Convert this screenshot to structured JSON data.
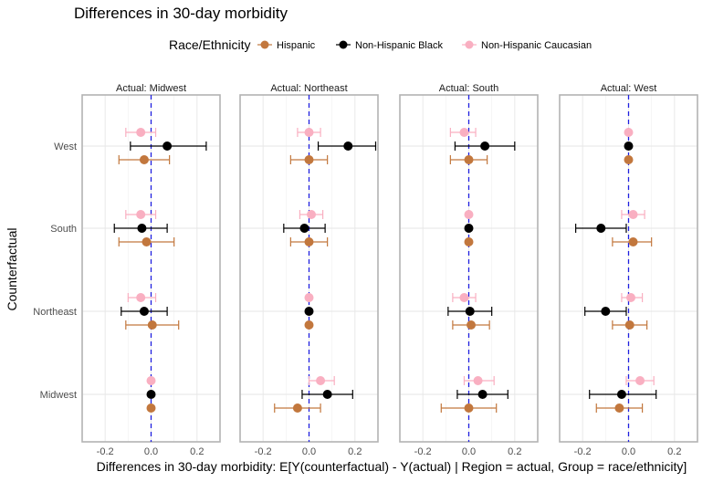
{
  "chart_data": {
    "type": "dot-errorbar-facets",
    "title": "Differences in 30-day morbidity",
    "legend": {
      "title": "Race/Ethnicity",
      "position": "top",
      "entries": [
        {
          "name": "Hispanic",
          "color": "#c2773d"
        },
        {
          "name": "Non-Hispanic Black",
          "color": "#000000"
        },
        {
          "name": "Non-Hispanic Caucasian",
          "color": "#f9afc1"
        }
      ]
    },
    "xlabel": "Differences in 30-day morbidity: E[Y(counterfactual) - Y(actual) | Region = actual, Group = race/ethnicity]",
    "ylabel": "Counterfactual",
    "xlim": [
      -0.3,
      0.3
    ],
    "xticks": [
      -0.2,
      0.0,
      0.2
    ],
    "xtick_labels": [
      "-0.2",
      "0.0",
      "0.2"
    ],
    "categories": [
      "West",
      "South",
      "Northeast",
      "Midwest"
    ],
    "reference_line": 0,
    "panels": [
      {
        "label": "Actual: Midwest",
        "highlighted_category": "Midwest",
        "series": [
          {
            "name": "Non-Hispanic Caucasian",
            "points": [
              {
                "y": "West",
                "x": -0.045,
                "lo": -0.11,
                "hi": 0.02
              },
              {
                "y": "South",
                "x": -0.045,
                "lo": -0.11,
                "hi": 0.02
              },
              {
                "y": "Northeast",
                "x": -0.045,
                "lo": -0.1,
                "hi": 0.02
              },
              {
                "y": "Midwest",
                "x": 0.0,
                "lo": 0.0,
                "hi": 0.0
              }
            ]
          },
          {
            "name": "Non-Hispanic Black",
            "points": [
              {
                "y": "West",
                "x": 0.07,
                "lo": -0.09,
                "hi": 0.24
              },
              {
                "y": "South",
                "x": -0.04,
                "lo": -0.16,
                "hi": 0.07
              },
              {
                "y": "Northeast",
                "x": -0.03,
                "lo": -0.13,
                "hi": 0.07
              },
              {
                "y": "Midwest",
                "x": 0.0,
                "lo": 0.0,
                "hi": 0.0
              }
            ]
          },
          {
            "name": "Hispanic",
            "points": [
              {
                "y": "West",
                "x": -0.03,
                "lo": -0.14,
                "hi": 0.08
              },
              {
                "y": "South",
                "x": -0.02,
                "lo": -0.14,
                "hi": 0.1
              },
              {
                "y": "Northeast",
                "x": 0.005,
                "lo": -0.11,
                "hi": 0.12
              },
              {
                "y": "Midwest",
                "x": 0.0,
                "lo": 0.0,
                "hi": 0.0
              }
            ]
          }
        ]
      },
      {
        "label": "Actual: Northeast",
        "highlighted_category": "Northeast",
        "series": [
          {
            "name": "Non-Hispanic Caucasian",
            "points": [
              {
                "y": "West",
                "x": 0.0,
                "lo": -0.05,
                "hi": 0.05
              },
              {
                "y": "South",
                "x": 0.01,
                "lo": -0.04,
                "hi": 0.06
              },
              {
                "y": "Northeast",
                "x": 0.0,
                "lo": 0.0,
                "hi": 0.0
              },
              {
                "y": "Midwest",
                "x": 0.05,
                "lo": 0.0,
                "hi": 0.11
              }
            ]
          },
          {
            "name": "Non-Hispanic Black",
            "points": [
              {
                "y": "West",
                "x": 0.17,
                "lo": 0.04,
                "hi": 0.29
              },
              {
                "y": "South",
                "x": -0.02,
                "lo": -0.11,
                "hi": 0.07
              },
              {
                "y": "Northeast",
                "x": 0.0,
                "lo": 0.0,
                "hi": 0.0
              },
              {
                "y": "Midwest",
                "x": 0.08,
                "lo": -0.03,
                "hi": 0.19
              }
            ]
          },
          {
            "name": "Hispanic",
            "points": [
              {
                "y": "West",
                "x": 0.0,
                "lo": -0.08,
                "hi": 0.08
              },
              {
                "y": "South",
                "x": 0.0,
                "lo": -0.08,
                "hi": 0.08
              },
              {
                "y": "Northeast",
                "x": 0.0,
                "lo": 0.0,
                "hi": 0.0
              },
              {
                "y": "Midwest",
                "x": -0.05,
                "lo": -0.15,
                "hi": 0.05
              }
            ]
          }
        ]
      },
      {
        "label": "Actual: South",
        "highlighted_category": "South",
        "series": [
          {
            "name": "Non-Hispanic Caucasian",
            "points": [
              {
                "y": "West",
                "x": -0.02,
                "lo": -0.08,
                "hi": 0.03
              },
              {
                "y": "South",
                "x": 0.0,
                "lo": 0.0,
                "hi": 0.0
              },
              {
                "y": "Northeast",
                "x": -0.02,
                "lo": -0.07,
                "hi": 0.03
              },
              {
                "y": "Midwest",
                "x": 0.04,
                "lo": -0.02,
                "hi": 0.11
              }
            ]
          },
          {
            "name": "Non-Hispanic Black",
            "points": [
              {
                "y": "West",
                "x": 0.07,
                "lo": -0.06,
                "hi": 0.2
              },
              {
                "y": "South",
                "x": 0.0,
                "lo": 0.0,
                "hi": 0.0
              },
              {
                "y": "Northeast",
                "x": 0.005,
                "lo": -0.09,
                "hi": 0.1
              },
              {
                "y": "Midwest",
                "x": 0.06,
                "lo": -0.05,
                "hi": 0.17
              }
            ]
          },
          {
            "name": "Hispanic",
            "points": [
              {
                "y": "West",
                "x": 0.0,
                "lo": -0.08,
                "hi": 0.08
              },
              {
                "y": "South",
                "x": 0.0,
                "lo": 0.0,
                "hi": 0.0
              },
              {
                "y": "Northeast",
                "x": 0.01,
                "lo": -0.07,
                "hi": 0.09
              },
              {
                "y": "Midwest",
                "x": 0.0,
                "lo": -0.12,
                "hi": 0.12
              }
            ]
          }
        ]
      },
      {
        "label": "Actual: West",
        "highlighted_category": "West",
        "series": [
          {
            "name": "Non-Hispanic Caucasian",
            "points": [
              {
                "y": "West",
                "x": 0.0,
                "lo": 0.0,
                "hi": 0.0
              },
              {
                "y": "South",
                "x": 0.02,
                "lo": -0.03,
                "hi": 0.07
              },
              {
                "y": "Northeast",
                "x": 0.01,
                "lo": -0.03,
                "hi": 0.06
              },
              {
                "y": "Midwest",
                "x": 0.05,
                "lo": -0.01,
                "hi": 0.11
              }
            ]
          },
          {
            "name": "Non-Hispanic Black",
            "points": [
              {
                "y": "West",
                "x": 0.0,
                "lo": 0.0,
                "hi": 0.0
              },
              {
                "y": "South",
                "x": -0.12,
                "lo": -0.23,
                "hi": -0.01
              },
              {
                "y": "Northeast",
                "x": -0.1,
                "lo": -0.19,
                "hi": -0.01
              },
              {
                "y": "Midwest",
                "x": -0.03,
                "lo": -0.17,
                "hi": 0.12
              }
            ]
          },
          {
            "name": "Hispanic",
            "points": [
              {
                "y": "West",
                "x": 0.0,
                "lo": 0.0,
                "hi": 0.0
              },
              {
                "y": "South",
                "x": 0.02,
                "lo": -0.07,
                "hi": 0.1
              },
              {
                "y": "Northeast",
                "x": 0.005,
                "lo": -0.07,
                "hi": 0.08
              },
              {
                "y": "Midwest",
                "x": -0.04,
                "lo": -0.14,
                "hi": 0.06
              }
            ]
          }
        ]
      }
    ]
  }
}
